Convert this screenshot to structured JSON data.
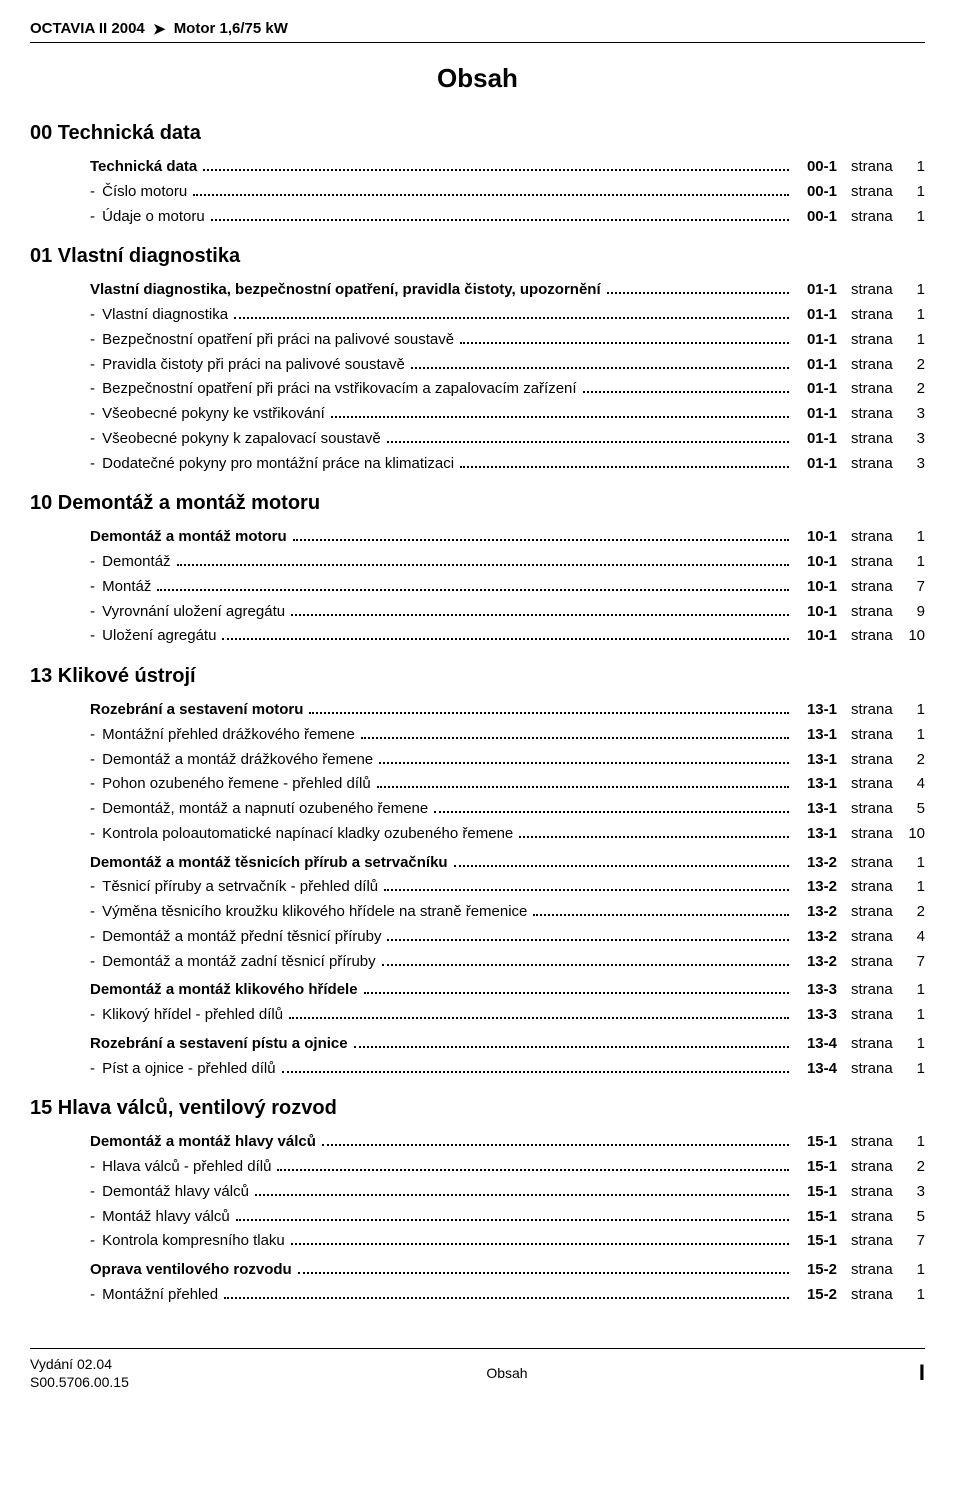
{
  "header": {
    "model": "OCTAVIA II 2004",
    "engine": "Motor 1,6/75 kW"
  },
  "title": "Obsah",
  "sections": [
    {
      "heading": "00 Technická data",
      "groups": [
        {
          "rows": [
            {
              "label": "Technická data",
              "bold": true,
              "code": "00-1",
              "page": "1"
            },
            {
              "label": "Číslo motoru",
              "dash": true,
              "code": "00-1",
              "page": "1"
            },
            {
              "label": "Údaje o motoru",
              "dash": true,
              "code": "00-1",
              "page": "1"
            }
          ]
        }
      ]
    },
    {
      "heading": "01 Vlastní diagnostika",
      "groups": [
        {
          "rows": [
            {
              "label": "Vlastní diagnostika, bezpečnostní opatření, pravidla čistoty, upozornění",
              "bold": true,
              "code": "01-1",
              "page": "1"
            },
            {
              "label": "Vlastní diagnostika",
              "dash": true,
              "code": "01-1",
              "page": "1"
            },
            {
              "label": "Bezpečnostní opatření při práci na palivové soustavě",
              "dash": true,
              "code": "01-1",
              "page": "1"
            },
            {
              "label": "Pravidla čistoty při práci na palivové soustavě",
              "dash": true,
              "code": "01-1",
              "page": "2"
            },
            {
              "label": "Bezpečnostní opatření při práci na vstřikovacím a zapalovacím zařízení",
              "dash": true,
              "code": "01-1",
              "page": "2"
            },
            {
              "label": "Všeobecné pokyny ke vstřikování",
              "dash": true,
              "code": "01-1",
              "page": "3"
            },
            {
              "label": "Všeobecné pokyny k zapalovací soustavě",
              "dash": true,
              "code": "01-1",
              "page": "3"
            },
            {
              "label": "Dodatečné pokyny pro montážní práce na klimatizaci",
              "dash": true,
              "code": "01-1",
              "page": "3"
            }
          ]
        }
      ]
    },
    {
      "heading": "10 Demontáž a montáž motoru",
      "groups": [
        {
          "rows": [
            {
              "label": "Demontáž a montáž motoru",
              "bold": true,
              "code": "10-1",
              "page": "1"
            },
            {
              "label": "Demontáž",
              "dash": true,
              "code": "10-1",
              "page": "1"
            },
            {
              "label": "Montáž",
              "dash": true,
              "code": "10-1",
              "page": "7"
            },
            {
              "label": "Vyrovnání uložení agregátu",
              "dash": true,
              "code": "10-1",
              "page": "9"
            },
            {
              "label": "Uložení agregátu",
              "dash": true,
              "code": "10-1",
              "page": "10"
            }
          ]
        }
      ]
    },
    {
      "heading": "13 Klikové ústrojí",
      "groups": [
        {
          "rows": [
            {
              "label": "Rozebrání a sestavení motoru",
              "bold": true,
              "code": "13-1",
              "page": "1"
            },
            {
              "label": "Montážní přehled drážkového řemene",
              "dash": true,
              "code": "13-1",
              "page": "1"
            },
            {
              "label": "Demontáž a montáž drážkového řemene",
              "dash": true,
              "code": "13-1",
              "page": "2"
            },
            {
              "label": "Pohon ozubeného řemene - přehled dílů",
              "dash": true,
              "code": "13-1",
              "page": "4"
            },
            {
              "label": "Demontáž, montáž a napnutí ozubeného řemene",
              "dash": true,
              "code": "13-1",
              "page": "5"
            },
            {
              "label": "Kontrola poloautomatické napínací kladky ozubeného řemene",
              "dash": true,
              "code": "13-1",
              "page": "10"
            }
          ]
        },
        {
          "rows": [
            {
              "label": "Demontáž a montáž těsnicích přírub a setrvačníku",
              "bold": true,
              "code": "13-2",
              "page": "1"
            },
            {
              "label": "Těsnicí příruby a setrvačník - přehled dílů",
              "dash": true,
              "code": "13-2",
              "page": "1"
            },
            {
              "label": "Výměna těsnicího kroužku klikového hřídele na straně řemenice",
              "dash": true,
              "code": "13-2",
              "page": "2"
            },
            {
              "label": "Demontáž a montáž přední těsnicí příruby",
              "dash": true,
              "code": "13-2",
              "page": "4"
            },
            {
              "label": "Demontáž a montáž zadní těsnicí příruby",
              "dash": true,
              "code": "13-2",
              "page": "7"
            }
          ]
        },
        {
          "rows": [
            {
              "label": "Demontáž a montáž klikového hřídele",
              "bold": true,
              "code": "13-3",
              "page": "1"
            },
            {
              "label": "Klikový hřídel - přehled dílů",
              "dash": true,
              "code": "13-3",
              "page": "1"
            }
          ]
        },
        {
          "rows": [
            {
              "label": "Rozebrání a sestavení pístu a ojnice",
              "bold": true,
              "code": "13-4",
              "page": "1"
            },
            {
              "label": "Píst a ojnice - přehled dílů",
              "dash": true,
              "code": "13-4",
              "page": "1"
            }
          ]
        }
      ]
    },
    {
      "heading": "15 Hlava válců, ventilový rozvod",
      "groups": [
        {
          "rows": [
            {
              "label": "Demontáž a montáž hlavy válců",
              "bold": true,
              "code": "15-1",
              "page": "1"
            },
            {
              "label": "Hlava válců - přehled dílů",
              "dash": true,
              "code": "15-1",
              "page": "2"
            },
            {
              "label": "Demontáž hlavy válců",
              "dash": true,
              "code": "15-1",
              "page": "3"
            },
            {
              "label": "Montáž hlavy válců",
              "dash": true,
              "code": "15-1",
              "page": "5"
            },
            {
              "label": "Kontrola kompresního tlaku",
              "dash": true,
              "code": "15-1",
              "page": "7"
            }
          ]
        },
        {
          "rows": [
            {
              "label": "Oprava ventilového rozvodu",
              "bold": true,
              "code": "15-2",
              "page": "1"
            },
            {
              "label": "Montážní přehled",
              "dash": true,
              "code": "15-2",
              "page": "1"
            }
          ]
        }
      ]
    }
  ],
  "strana_label": "strana",
  "footer": {
    "edition_line1": "Vydání 02.04",
    "edition_line2": "S00.5706.00.15",
    "center": "Obsah",
    "page": "I"
  }
}
